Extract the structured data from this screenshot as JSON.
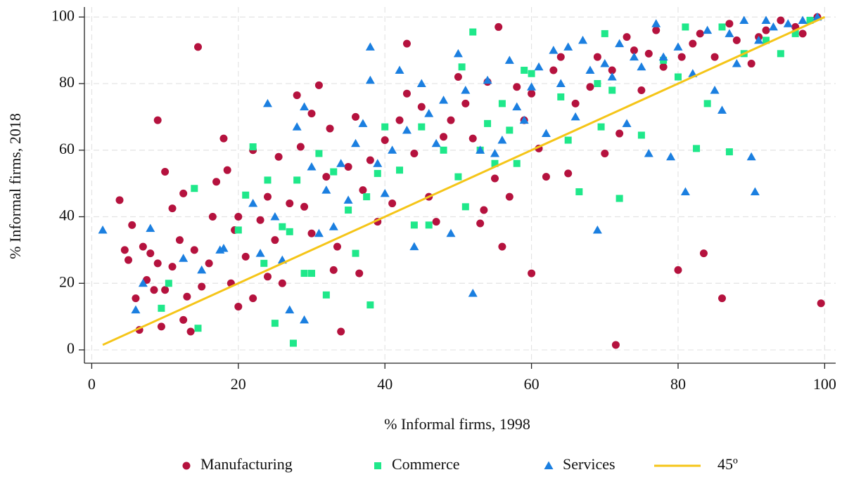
{
  "chart_data": {
    "type": "scatter",
    "x_label": "% Informal firms, 1998",
    "y_label": "% Informal firms, 2018",
    "xlim": [
      -1,
      101.5
    ],
    "ylim": [
      -4,
      103
    ],
    "xticks": [
      0,
      20,
      40,
      60,
      80,
      100
    ],
    "yticks": [
      0,
      20,
      40,
      60,
      80,
      100
    ],
    "grid": true,
    "legend": "bottom",
    "series": [
      {
        "name": "Manufacturing",
        "color": "#b5123e",
        "marker": "circle",
        "x": [
          3.8,
          4.5,
          5,
          5.5,
          6,
          6.5,
          7,
          7.5,
          8,
          8.5,
          9,
          9,
          9.5,
          10,
          10,
          11,
          11,
          12,
          12.5,
          12.5,
          13,
          13.5,
          14,
          14.5,
          15,
          16,
          16.5,
          17,
          18,
          18.5,
          19,
          19.5,
          20,
          20,
          21,
          22,
          22,
          23,
          24,
          24,
          25,
          25.5,
          26,
          27,
          28,
          28.5,
          29,
          30,
          30,
          31,
          32,
          32.5,
          33,
          33.5,
          34,
          35,
          36,
          36.5,
          37,
          38,
          39,
          40,
          41,
          42,
          43,
          43,
          44,
          45,
          46,
          47,
          48,
          49,
          50,
          51,
          52,
          53,
          53.5,
          54,
          55,
          55.5,
          56,
          57,
          58,
          59,
          60,
          60,
          61,
          62,
          63,
          64,
          65,
          66,
          68,
          69,
          70,
          71,
          71.5,
          72,
          73,
          74,
          75,
          76,
          77,
          78,
          80,
          80.5,
          82,
          83,
          83.5,
          85,
          86,
          87,
          88,
          90,
          91,
          92,
          94,
          96,
          97,
          99,
          99.5
        ],
        "values": [
          45,
          30,
          27,
          37.5,
          15.5,
          6,
          31,
          21,
          29,
          18,
          69,
          26,
          7,
          53.5,
          18,
          42.5,
          25,
          33,
          47,
          9,
          16,
          5.5,
          30,
          91,
          19,
          26,
          40,
          50.5,
          63.5,
          54,
          20,
          36,
          40,
          13,
          28,
          15.5,
          60,
          39,
          46,
          22,
          33,
          58,
          20,
          44,
          76.5,
          61,
          43,
          71,
          35,
          79.5,
          52,
          66.5,
          24,
          31,
          5.5,
          55,
          70,
          23,
          48,
          57,
          38.5,
          63,
          44,
          69,
          92,
          77,
          59,
          73,
          46,
          38.5,
          64,
          69,
          82,
          74,
          63.5,
          38,
          42,
          80.5,
          51.5,
          97,
          31,
          46,
          79,
          69,
          77,
          23,
          60.5,
          52,
          84,
          88,
          53,
          74,
          79,
          88,
          59,
          84,
          1.5,
          65,
          94,
          90,
          78,
          89,
          96,
          85,
          24,
          88,
          92,
          95,
          29,
          88,
          15.5,
          98,
          93,
          86,
          94,
          96,
          99,
          97,
          95,
          100,
          14
        ]
      },
      {
        "name": "Commerce",
        "color": "#1fe88a",
        "marker": "square",
        "x": [
          9.5,
          10.5,
          14,
          14.5,
          20,
          21,
          22,
          23.5,
          24,
          25,
          26,
          27,
          27.5,
          28,
          29,
          30,
          31,
          32,
          33,
          35,
          36,
          37.5,
          38,
          39,
          40,
          42,
          44,
          45,
          46,
          48,
          50,
          50.5,
          51,
          52,
          53,
          54,
          55,
          56,
          57,
          58,
          59,
          60,
          64,
          65,
          66.5,
          69,
          69.5,
          70,
          71,
          72,
          75,
          78,
          80,
          81,
          82.5,
          84,
          86,
          87,
          89,
          92,
          94,
          96,
          98
        ],
        "values": [
          12.5,
          20,
          48.5,
          6.5,
          36,
          46.5,
          61,
          26,
          51,
          8,
          37,
          35.5,
          2,
          51,
          23,
          23,
          59,
          16.5,
          53.5,
          42,
          29,
          46,
          13.5,
          53,
          67,
          54,
          37.5,
          67,
          37.5,
          60,
          52,
          85,
          43,
          95.5,
          60,
          68,
          56,
          74,
          66,
          56,
          84,
          83,
          76,
          63,
          47.5,
          80,
          67,
          95,
          78,
          45.5,
          64.5,
          87,
          82,
          97,
          60.5,
          74,
          97,
          59.5,
          89,
          93,
          89,
          95,
          99
        ]
      },
      {
        "name": "Services",
        "color": "#1b7fe0",
        "marker": "triangle",
        "x": [
          1.5,
          6,
          7,
          8,
          12.5,
          15,
          17.5,
          18,
          22,
          23,
          24,
          25,
          26,
          27,
          28,
          29,
          29,
          30,
          31,
          32,
          33,
          34,
          35,
          36,
          37,
          38,
          38,
          39,
          40,
          41,
          42,
          43,
          44,
          45,
          46,
          47,
          48,
          49,
          50,
          51,
          52,
          53,
          54,
          55,
          56,
          57,
          58,
          59,
          60,
          61,
          62,
          63,
          64,
          65,
          66,
          67,
          68,
          69,
          70,
          71,
          72,
          73,
          74,
          75,
          76,
          77,
          78,
          79,
          80,
          81,
          82,
          84,
          85,
          86,
          87,
          88,
          89,
          90,
          90.5,
          91,
          92,
          93,
          95,
          97,
          99
        ],
        "values": [
          36,
          12,
          20,
          36.5,
          27.5,
          24,
          30,
          30.5,
          44,
          29,
          74,
          40,
          27,
          12,
          67,
          9,
          73,
          55,
          35,
          48,
          37,
          56,
          45,
          62,
          68,
          91,
          81,
          56,
          47,
          60,
          84,
          66,
          31,
          80,
          71,
          62,
          75,
          35,
          89,
          78,
          17,
          60,
          81,
          59,
          63,
          87,
          73,
          69,
          79,
          85,
          65,
          90,
          80,
          91,
          70,
          93,
          84,
          36,
          86,
          82,
          92,
          68,
          88,
          85,
          59,
          98,
          88,
          58,
          91,
          47.5,
          83,
          96,
          78,
          72,
          95,
          86,
          99,
          58,
          47.5,
          93,
          99,
          97,
          98,
          99,
          100
        ]
      },
      {
        "name": "45º",
        "color": "#f5c518",
        "marker": "line",
        "x": [
          1.5,
          100
        ],
        "values": [
          1.5,
          100
        ]
      }
    ]
  }
}
